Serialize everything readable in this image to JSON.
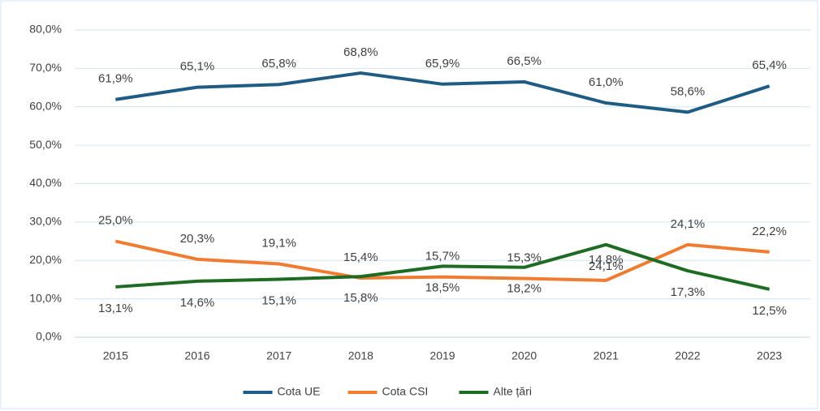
{
  "chart_data": {
    "type": "line",
    "categories": [
      "2015",
      "2016",
      "2017",
      "2018",
      "2019",
      "2020",
      "2021",
      "2022",
      "2023"
    ],
    "series": [
      {
        "name": "Cota UE",
        "color": "#1f5c85",
        "label_position": "above",
        "values": [
          61.9,
          65.1,
          65.8,
          68.8,
          65.9,
          66.5,
          61.0,
          58.6,
          65.4
        ],
        "value_labels": [
          "61,9%",
          "65,1%",
          "65,8%",
          "68,8%",
          "65,9%",
          "66,5%",
          "61,0%",
          "58,6%",
          "65,4%"
        ]
      },
      {
        "name": "Cota CSI",
        "color": "#f07c32",
        "label_position": "above",
        "values": [
          25.0,
          20.3,
          19.1,
          15.4,
          15.7,
          15.3,
          14.8,
          24.1,
          22.2
        ],
        "value_labels": [
          "25,0%",
          "20,3%",
          "19,1%",
          "15,4%",
          "15,7%",
          "15,3%",
          "14,8%",
          "24,1%",
          "22,2%"
        ]
      },
      {
        "name": "Alte țări",
        "color": "#1e6b23",
        "label_position": "below",
        "values": [
          13.1,
          14.6,
          15.1,
          15.8,
          18.5,
          18.2,
          24.1,
          17.3,
          12.5
        ],
        "value_labels": [
          "13,1%",
          "14,6%",
          "15,1%",
          "15,8%",
          "18,5%",
          "18,2%",
          "24,1%",
          "17,3%",
          "12,5%"
        ]
      }
    ],
    "ylim": [
      0,
      80
    ],
    "yticks": [
      {
        "value": 0,
        "label": "0,0%"
      },
      {
        "value": 10,
        "label": "10,0%"
      },
      {
        "value": 20,
        "label": "20,0%"
      },
      {
        "value": 30,
        "label": "30,0%"
      },
      {
        "value": 40,
        "label": "40,0%"
      },
      {
        "value": 50,
        "label": "50,0%"
      },
      {
        "value": 60,
        "label": "60,0%"
      },
      {
        "value": 70,
        "label": "70,0%"
      },
      {
        "value": 80,
        "label": "80,0%"
      }
    ],
    "grid": true,
    "legend": "bottom"
  }
}
